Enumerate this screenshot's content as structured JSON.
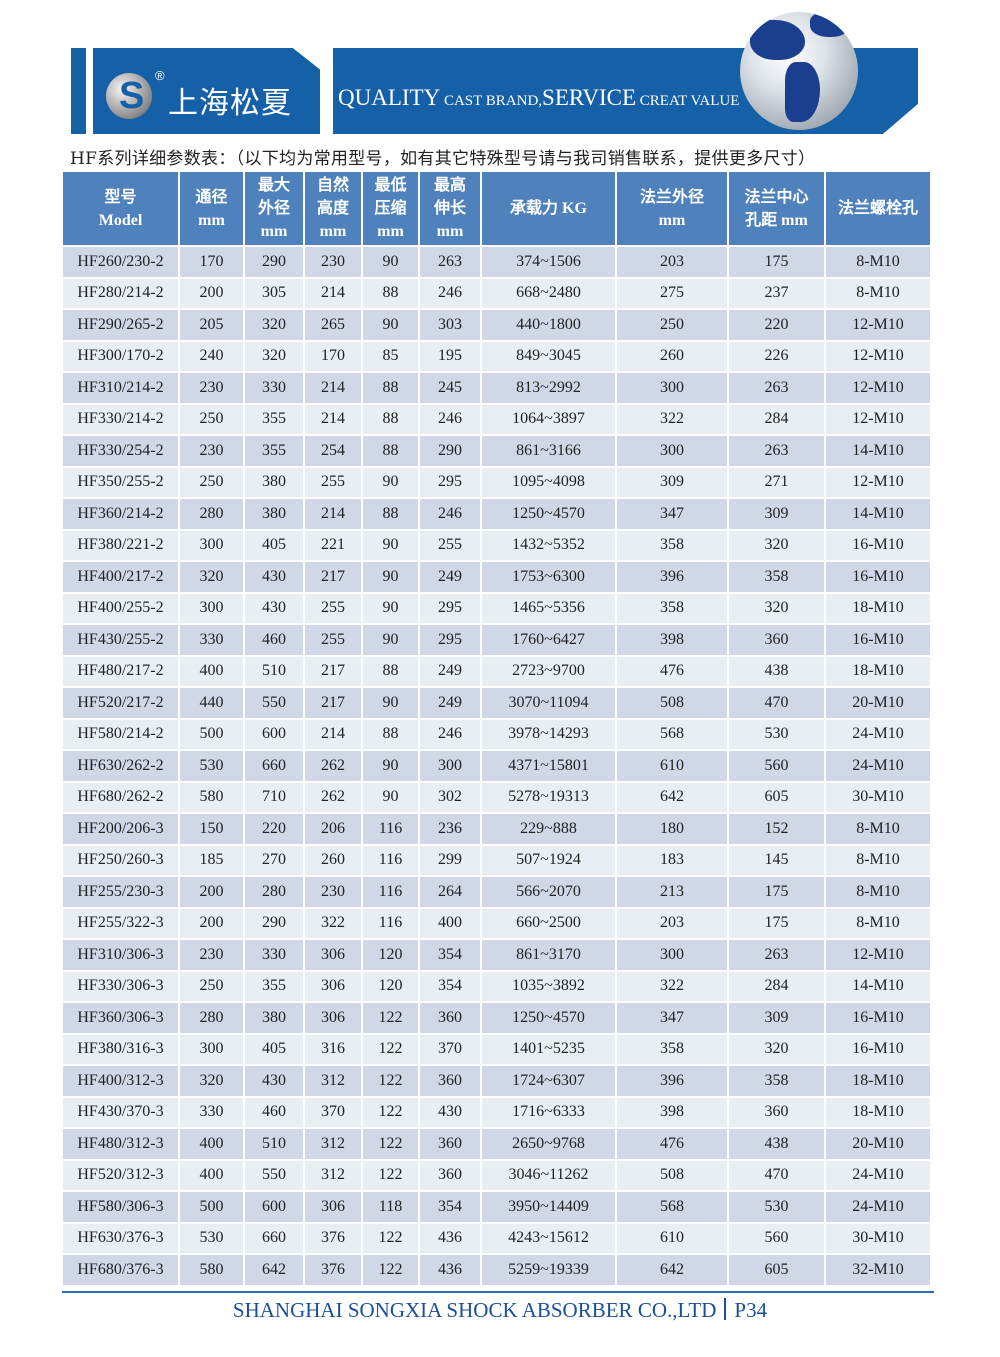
{
  "header": {
    "brand": "上海松夏",
    "registered": "®",
    "logo_letter": "S",
    "slogan_big1": "QUALITY",
    "slogan_small1": " CAST BRAND,",
    "slogan_big2": "SERVICE",
    "slogan_small2": " CREAT VALUE"
  },
  "subtitle": "HF系列详细参数表：（以下均为常用型号，如有其它特殊型号请与我司销售联系，提供更多尺寸）",
  "table": {
    "columns": [
      [
        "型号",
        "Model"
      ],
      [
        "通径",
        "mm"
      ],
      [
        "最大",
        "外径",
        "mm"
      ],
      [
        "自然",
        "高度",
        "mm"
      ],
      [
        "最低",
        "压缩",
        "mm"
      ],
      [
        "最高",
        "伸长",
        "mm"
      ],
      [
        "承载力 KG"
      ],
      [
        "法兰外径",
        "mm"
      ],
      [
        "法兰中心",
        "孔距 mm"
      ],
      [
        "法兰螺栓孔"
      ]
    ],
    "rows": [
      [
        "HF260/230-2",
        "170",
        "290",
        "230",
        "90",
        "263",
        "374~1506",
        "203",
        "175",
        "8-M10"
      ],
      [
        "HF280/214-2",
        "200",
        "305",
        "214",
        "88",
        "246",
        "668~2480",
        "275",
        "237",
        "8-M10"
      ],
      [
        "HF290/265-2",
        "205",
        "320",
        "265",
        "90",
        "303",
        "440~1800",
        "250",
        "220",
        "12-M10"
      ],
      [
        "HF300/170-2",
        "240",
        "320",
        "170",
        "85",
        "195",
        "849~3045",
        "260",
        "226",
        "12-M10"
      ],
      [
        "HF310/214-2",
        "230",
        "330",
        "214",
        "88",
        "245",
        "813~2992",
        "300",
        "263",
        "12-M10"
      ],
      [
        "HF330/214-2",
        "250",
        "355",
        "214",
        "88",
        "246",
        "1064~3897",
        "322",
        "284",
        "12-M10"
      ],
      [
        "HF330/254-2",
        "230",
        "355",
        "254",
        "88",
        "290",
        "861~3166",
        "300",
        "263",
        "14-M10"
      ],
      [
        "HF350/255-2",
        "250",
        "380",
        "255",
        "90",
        "295",
        "1095~4098",
        "309",
        "271",
        "12-M10"
      ],
      [
        "HF360/214-2",
        "280",
        "380",
        "214",
        "88",
        "246",
        "1250~4570",
        "347",
        "309",
        "14-M10"
      ],
      [
        "HF380/221-2",
        "300",
        "405",
        "221",
        "90",
        "255",
        "1432~5352",
        "358",
        "320",
        "16-M10"
      ],
      [
        "HF400/217-2",
        "320",
        "430",
        "217",
        "90",
        "249",
        "1753~6300",
        "396",
        "358",
        "16-M10"
      ],
      [
        "HF400/255-2",
        "300",
        "430",
        "255",
        "90",
        "295",
        "1465~5356",
        "358",
        "320",
        "18-M10"
      ],
      [
        "HF430/255-2",
        "330",
        "460",
        "255",
        "90",
        "295",
        "1760~6427",
        "398",
        "360",
        "16-M10"
      ],
      [
        "HF480/217-2",
        "400",
        "510",
        "217",
        "88",
        "249",
        "2723~9700",
        "476",
        "438",
        "18-M10"
      ],
      [
        "HF520/217-2",
        "440",
        "550",
        "217",
        "90",
        "249",
        "3070~11094",
        "508",
        "470",
        "20-M10"
      ],
      [
        "HF580/214-2",
        "500",
        "600",
        "214",
        "88",
        "246",
        "3978~14293",
        "568",
        "530",
        "24-M10"
      ],
      [
        "HF630/262-2",
        "530",
        "660",
        "262",
        "90",
        "300",
        "4371~15801",
        "610",
        "560",
        "24-M10"
      ],
      [
        "HF680/262-2",
        "580",
        "710",
        "262",
        "90",
        "302",
        "5278~19313",
        "642",
        "605",
        "30-M10"
      ],
      [
        "HF200/206-3",
        "150",
        "220",
        "206",
        "116",
        "236",
        "229~888",
        "180",
        "152",
        "8-M10"
      ],
      [
        "HF250/260-3",
        "185",
        "270",
        "260",
        "116",
        "299",
        "507~1924",
        "183",
        "145",
        "8-M10"
      ],
      [
        "HF255/230-3",
        "200",
        "280",
        "230",
        "116",
        "264",
        "566~2070",
        "213",
        "175",
        "8-M10"
      ],
      [
        "HF255/322-3",
        "200",
        "290",
        "322",
        "116",
        "400",
        "660~2500",
        "203",
        "175",
        "8-M10"
      ],
      [
        "HF310/306-3",
        "230",
        "330",
        "306",
        "120",
        "354",
        "861~3170",
        "300",
        "263",
        "12-M10"
      ],
      [
        "HF330/306-3",
        "250",
        "355",
        "306",
        "120",
        "354",
        "1035~3892",
        "322",
        "284",
        "14-M10"
      ],
      [
        "HF360/306-3",
        "280",
        "380",
        "306",
        "122",
        "360",
        "1250~4570",
        "347",
        "309",
        "16-M10"
      ],
      [
        "HF380/316-3",
        "300",
        "405",
        "316",
        "122",
        "370",
        "1401~5235",
        "358",
        "320",
        "16-M10"
      ],
      [
        "HF400/312-3",
        "320",
        "430",
        "312",
        "122",
        "360",
        "1724~6307",
        "396",
        "358",
        "18-M10"
      ],
      [
        "HF430/370-3",
        "330",
        "460",
        "370",
        "122",
        "430",
        "1716~6333",
        "398",
        "360",
        "18-M10"
      ],
      [
        "HF480/312-3",
        "400",
        "510",
        "312",
        "122",
        "360",
        "2650~9768",
        "476",
        "438",
        "20-M10"
      ],
      [
        "HF520/312-3",
        "400",
        "550",
        "312",
        "122",
        "360",
        "3046~11262",
        "508",
        "470",
        "24-M10"
      ],
      [
        "HF580/306-3",
        "500",
        "600",
        "306",
        "118",
        "354",
        "3950~14409",
        "568",
        "530",
        "24-M10"
      ],
      [
        "HF630/376-3",
        "530",
        "660",
        "376",
        "122",
        "436",
        "4243~15612",
        "610",
        "560",
        "30-M10"
      ],
      [
        "HF680/376-3",
        "580",
        "642",
        "376",
        "122",
        "436",
        "5259~19339",
        "642",
        "605",
        "32-M10"
      ]
    ]
  },
  "footer": {
    "company": "SHANGHAI SONGXIA SHOCK ABSORBER CO.,LTD",
    "page": "P34"
  },
  "colors": {
    "brand_blue": "#1660a8",
    "header_blue": "#4f81bd",
    "row_dark": "#d0d8e8",
    "row_light": "#e9edf4"
  }
}
